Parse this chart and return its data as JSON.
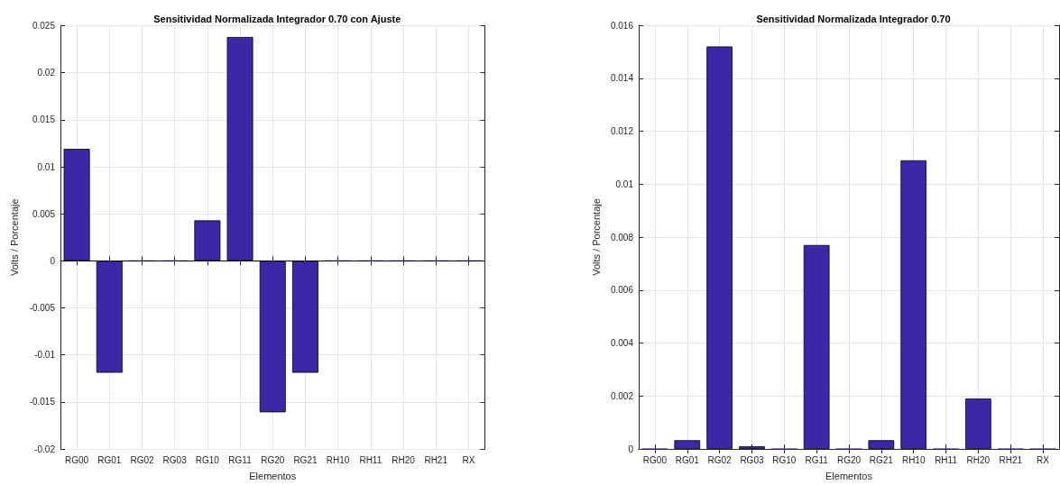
{
  "chart_data": [
    {
      "type": "bar",
      "title": "Sensitividad Normalizada Integrador 0.70 con Ajuste",
      "xlabel": "Elementos",
      "ylabel": "Volts / Porcentaje",
      "categories": [
        "RG00",
        "RG01",
        "RG02",
        "RG03",
        "RG10",
        "RG11",
        "RG20",
        "RG21",
        "RH10",
        "RH11",
        "RH20",
        "RH21",
        "RX"
      ],
      "values": [
        0.0119,
        -0.0119,
        0,
        0,
        0.0043,
        0.0238,
        -0.0161,
        -0.0119,
        0,
        0,
        0,
        0,
        0
      ],
      "color": "#3c28a6",
      "ylim": [
        -0.02,
        0.025
      ],
      "yticks": [
        -0.02,
        -0.015,
        -0.01,
        -0.005,
        0,
        0.005,
        0.01,
        0.015,
        0.02,
        0.025
      ],
      "grid": true,
      "ref_lines": [
        {
          "axis": "y",
          "value": 0,
          "color": "#000000"
        }
      ]
    },
    {
      "type": "bar",
      "title": "Sensitividad Normalizada Integrador 0.70",
      "xlabel": "Elementos",
      "ylabel": "Volts / Porcentaje",
      "categories": [
        "RG00",
        "RG01",
        "RG02",
        "RG03",
        "RG10",
        "RG11",
        "RG20",
        "RG21",
        "RH10",
        "RH11",
        "RH20",
        "RH21",
        "RX"
      ],
      "values": [
        0,
        0.00033,
        0.0152,
        0.0001,
        0,
        0.0077,
        0,
        0.00033,
        0.0109,
        0,
        0.0019,
        0,
        0
      ],
      "color": "#3c28a6",
      "ylim": [
        0,
        0.016
      ],
      "yticks": [
        0,
        0.002,
        0.004,
        0.006,
        0.008,
        0.01,
        0.012,
        0.014,
        0.016
      ],
      "grid": true
    }
  ]
}
